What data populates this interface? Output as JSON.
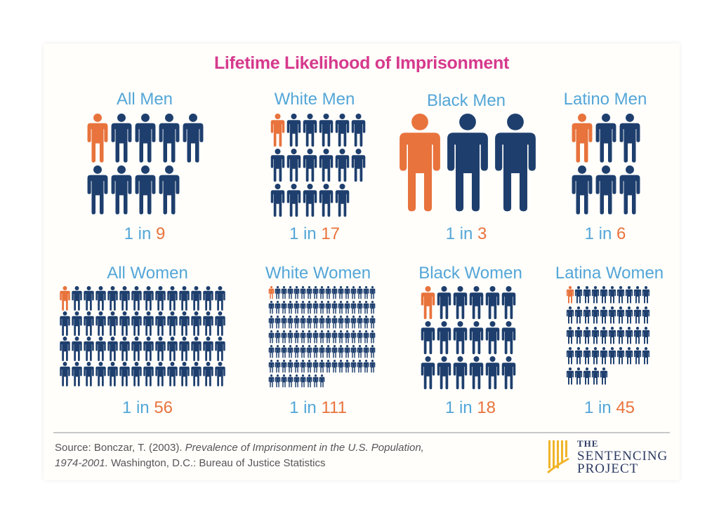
{
  "title": "Lifetime Likelihood of Imprisonment",
  "colors": {
    "title": "#d6398c",
    "label": "#53a6d8",
    "highlight": "#e8733c",
    "figure": "#1e3f6e",
    "logo": "#2c3b63",
    "logo_accent": "#f0b429"
  },
  "chart_data": {
    "type": "pictograph",
    "title": "Lifetime Likelihood of Imprisonment",
    "groups": [
      {
        "name": "All Men",
        "ratio_prefix": "1 in",
        "ratio_value": 9
      },
      {
        "name": "White Men",
        "ratio_prefix": "1 in",
        "ratio_value": 17
      },
      {
        "name": "Black Men",
        "ratio_prefix": "1 in",
        "ratio_value": 3
      },
      {
        "name": "Latino Men",
        "ratio_prefix": "1 in",
        "ratio_value": 6
      },
      {
        "name": "All Women",
        "ratio_prefix": "1 in",
        "ratio_value": 56
      },
      {
        "name": "White Women",
        "ratio_prefix": "1 in",
        "ratio_value": 111
      },
      {
        "name": "Black Women",
        "ratio_prefix": "1 in",
        "ratio_value": 18
      },
      {
        "name": "Latina Women",
        "ratio_prefix": "1 in",
        "ratio_value": 45
      }
    ]
  },
  "source": {
    "prefix": "Source: Bonczar, T. (2003). ",
    "title": "Prevalence of Imprisonment in the U.S. Population, 1974-2001.",
    "suffix": " Washington, D.C.: Bureau of Justice Statistics"
  },
  "logo": {
    "line1": "THE",
    "line2": "SENTENCING",
    "line3": "PROJECT"
  }
}
